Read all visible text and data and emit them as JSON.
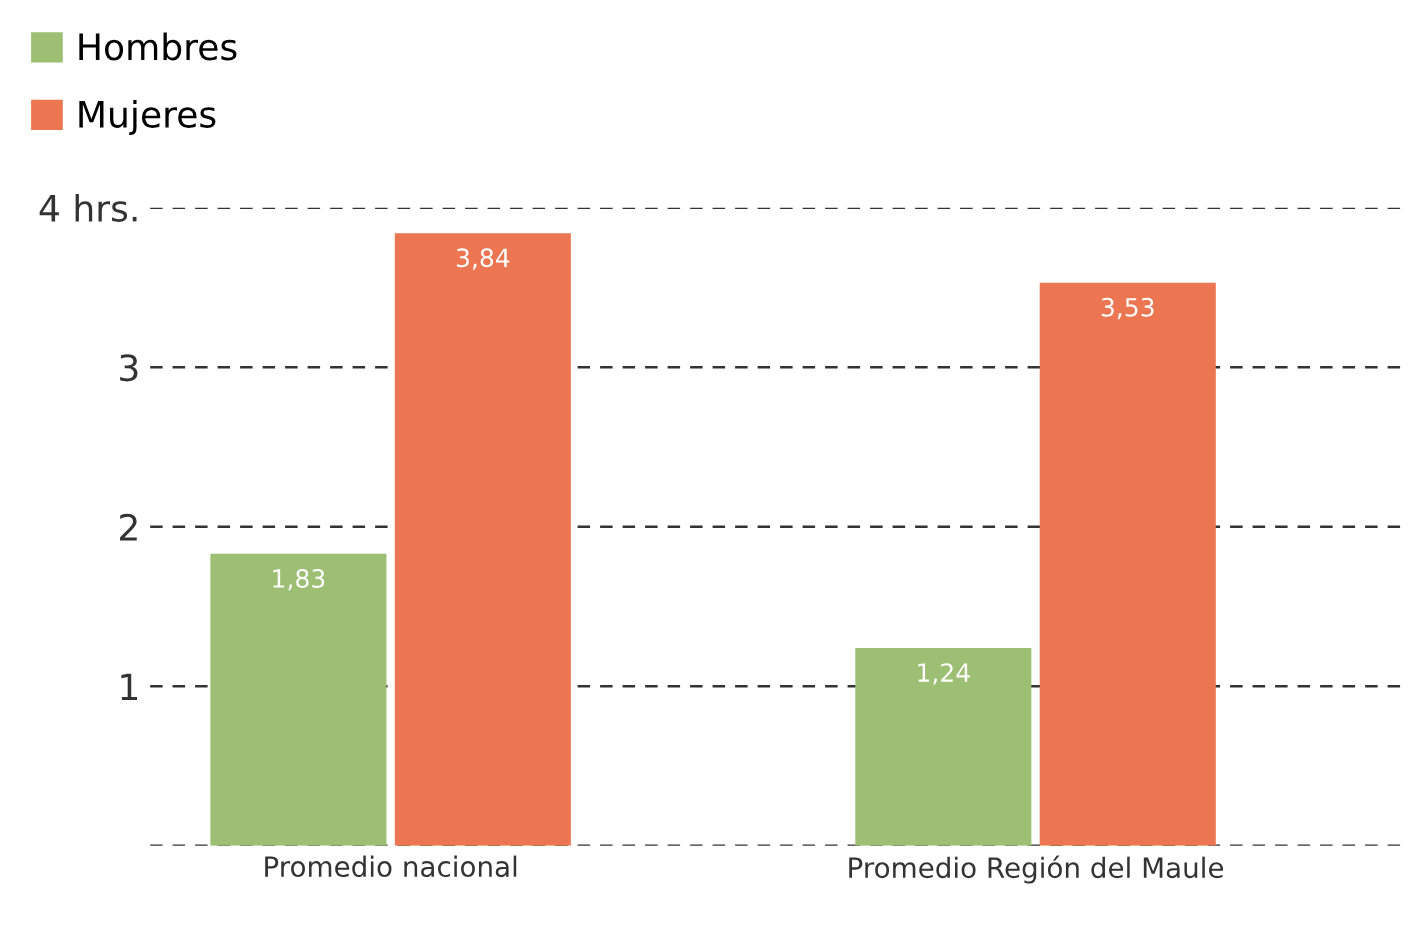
{
  "chart_data": {
    "type": "bar",
    "categories": [
      "Promedio nacional",
      "Promedio Región del Maule"
    ],
    "series": [
      {
        "name": "Hombres",
        "color": "#9dbf74",
        "values": [
          1.83,
          1.24
        ],
        "value_labels": [
          "1,83",
          "1,24"
        ]
      },
      {
        "name": "Mujeres",
        "color": "#ec7651",
        "values": [
          3.84,
          3.53
        ],
        "value_labels": [
          "3,84",
          "3,53"
        ]
      }
    ],
    "ylim": [
      0,
      4
    ],
    "yticks": [
      {
        "value": 0,
        "label": null
      },
      1,
      2,
      3,
      {
        "value": 4,
        "label": "4 hrs."
      }
    ],
    "grid": "y",
    "line_style": "dashed",
    "legend": "top left"
  }
}
